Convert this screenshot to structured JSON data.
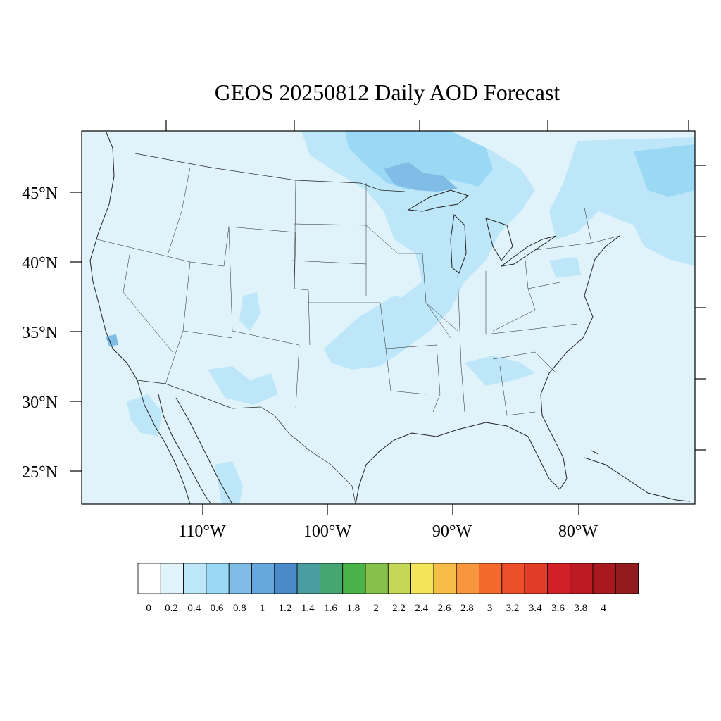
{
  "title": "GEOS 20250812 Daily AOD Forecast",
  "lat_labels": [
    "45°N",
    "40°N",
    "35°N",
    "30°N",
    "25°N"
  ],
  "lon_labels": [
    "110°W",
    "100°W",
    "90°W",
    "80°W"
  ],
  "colorbar": {
    "colors": [
      "#ffffff",
      "#e0f3fb",
      "#bde6f8",
      "#9ad8f4",
      "#7fbde6",
      "#66a7dc",
      "#4a8ac8",
      "#4a9e9f",
      "#47a571",
      "#49b34a",
      "#86c24b",
      "#c4d756",
      "#f5e55b",
      "#f7bd49",
      "#f7963d",
      "#f46a2c",
      "#eb502a",
      "#e03c28",
      "#d22028",
      "#bd1b24",
      "#a8191f",
      "#921b1d"
    ],
    "tick_labels": [
      "0",
      "0.2",
      "0.4",
      "0.6",
      "0.8",
      "1",
      "1.2",
      "1.4",
      "1.6",
      "1.8",
      "2",
      "2.2",
      "2.4",
      "2.6",
      "2.8",
      "3",
      "3.2",
      "3.4",
      "3.6",
      "3.8",
      "4"
    ]
  },
  "map_colors": {
    "background": "#e0f3fb",
    "level_04": "#bde6f8",
    "level_06": "#9ad8f4",
    "level_08": "#7fbde6"
  }
}
